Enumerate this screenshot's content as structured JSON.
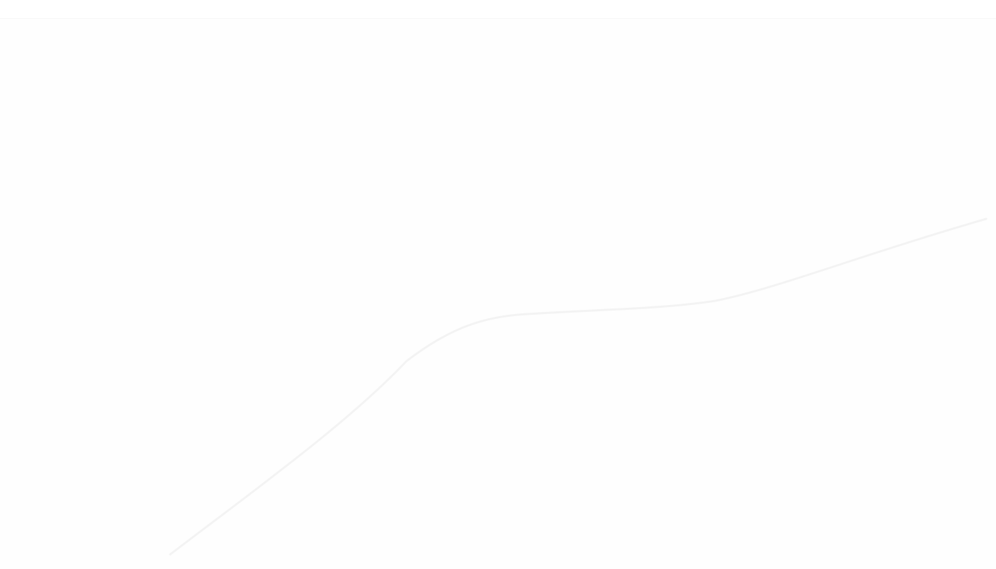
{
  "colors": {
    "background": "#ffffff",
    "top_bar_border": "#f6f6f6",
    "content_background": "#fefefe",
    "faint_stroke": "#f3f3f3"
  }
}
